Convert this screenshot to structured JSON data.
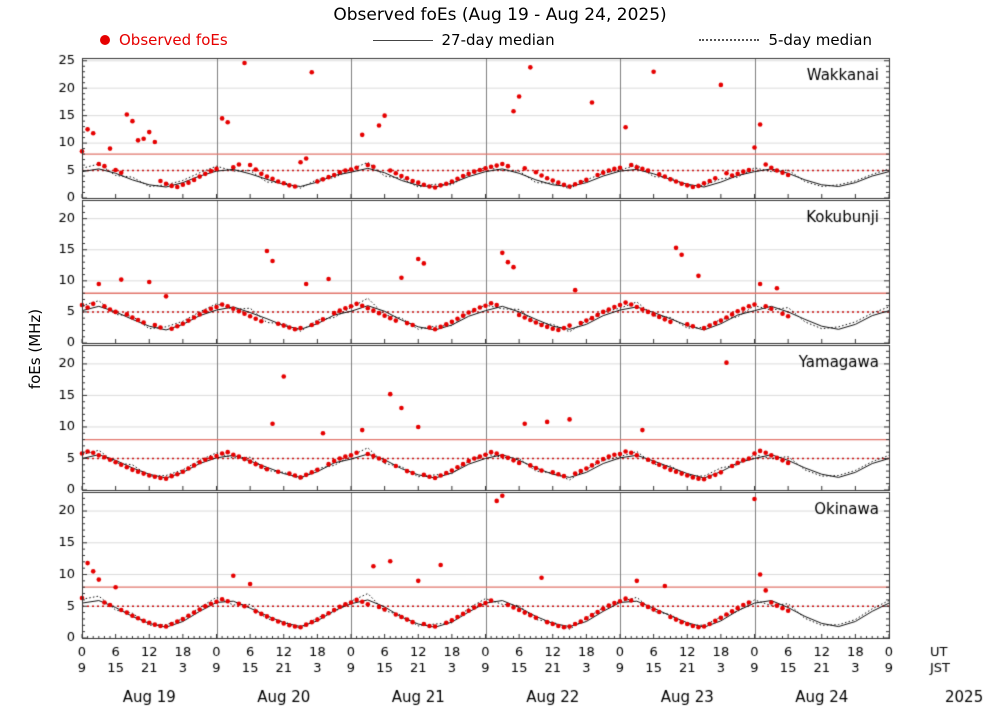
{
  "title": "Observed foEs (Aug 19 - Aug 24, 2025)",
  "ylabel": "foEs (MHz)",
  "legend": {
    "observed": "Observed foEs",
    "median27": "27-day median",
    "median5": "5-day median"
  },
  "colors": {
    "observed": "#e60000",
    "median": "#111111",
    "ref_solid": "#e2756b",
    "ref_dotted": "#cc1111",
    "grid": "#dcdcdc",
    "frame": "#333333",
    "day_line": "#808080"
  },
  "x_axis": {
    "tick_step_hours": 6,
    "ut_row_label": "UT",
    "jst_row_label": "JST",
    "year": "2025",
    "ut_tick_labels": [
      "0",
      "6",
      "12",
      "18",
      "0",
      "6",
      "12",
      "18",
      "0",
      "6",
      "12",
      "18",
      "0",
      "6",
      "12",
      "18",
      "0",
      "6",
      "12",
      "18",
      "0",
      "6",
      "12",
      "18",
      "0"
    ],
    "jst_tick_labels": [
      "9",
      "15",
      "21",
      "3",
      "9",
      "15",
      "21",
      "3",
      "9",
      "15",
      "21",
      "3",
      "9",
      "15",
      "21",
      "3",
      "9",
      "15",
      "21",
      "3",
      "9",
      "15",
      "21",
      "3",
      "9"
    ],
    "day_labels": [
      "Aug 19",
      "Aug 20",
      "Aug 21",
      "Aug 22",
      "Aug 23",
      "Aug 24"
    ]
  },
  "chart_data": {
    "type": "scatter+line",
    "x_unit": "hours since Aug 19 00:00 UT",
    "x_total_hours": 144,
    "observed_step_hours": 1,
    "median_step_hours": 3,
    "reference_lines": {
      "solid_mhz": 8,
      "dotted_mhz": 5
    },
    "panels": [
      {
        "station": "Wakkanai",
        "ymax": 25.5,
        "yticks": [
          0,
          5,
          10,
          15,
          20,
          25
        ],
        "observed": [
          8.5,
          12.5,
          11.8,
          6.2,
          5.8,
          9.0,
          5.1,
          4.6,
          15.2,
          14.0,
          10.5,
          10.8,
          12.0,
          10.2,
          3.1,
          2.6,
          2.2,
          2.0,
          2.4,
          2.8,
          3.3,
          3.9,
          4.4,
          4.9,
          5.3,
          14.5,
          13.8,
          5.6,
          6.1,
          24.6,
          6.0,
          5.2,
          4.4,
          3.9,
          3.5,
          3.0,
          2.7,
          2.3,
          2.1,
          6.5,
          7.2,
          22.9,
          3.0,
          3.4,
          3.8,
          4.2,
          4.7,
          5.0,
          5.2,
          5.5,
          11.5,
          6.0,
          5.7,
          13.2,
          15.0,
          5.0,
          4.5,
          4.0,
          3.6,
          3.1,
          2.8,
          2.4,
          2.1,
          1.9,
          2.3,
          2.6,
          3.0,
          3.5,
          4.0,
          4.4,
          4.8,
          5.1,
          5.4,
          5.7,
          5.9,
          6.2,
          5.8,
          15.8,
          18.5,
          5.4,
          23.8,
          4.7,
          4.1,
          3.6,
          3.2,
          2.8,
          2.4,
          2.1,
          2.5,
          2.9,
          3.3,
          17.4,
          4.2,
          4.6,
          5.0,
          5.3,
          5.5,
          12.9,
          6.0,
          5.6,
          5.3,
          5.0,
          23.0,
          4.3,
          3.9,
          3.4,
          3.0,
          2.6,
          2.3,
          2.0,
          2.2,
          2.7,
          3.1,
          3.6,
          20.6,
          4.5,
          4.1,
          4.4,
          4.8,
          5.1,
          9.2,
          13.4,
          6.1,
          5.5,
          5.0,
          4.6,
          4.2
        ],
        "median27": [
          4.8,
          5.3,
          4.5,
          3.3,
          2.4,
          2.0,
          2.8,
          4.0,
          4.9,
          5.2,
          4.4,
          3.4,
          2.5,
          2.1,
          2.9,
          4.1,
          4.7,
          5.4,
          4.6,
          3.2,
          2.3,
          2.0,
          2.7,
          3.9,
          4.8,
          5.3,
          4.5,
          3.3,
          2.4,
          2.1,
          2.8,
          4.0,
          4.9,
          5.2,
          4.4,
          3.4,
          2.5,
          2.0,
          2.9,
          4.1,
          4.8,
          5.3,
          4.5,
          3.3,
          2.4,
          2.1,
          2.8,
          4.0,
          4.8
        ],
        "median5": [
          5.4,
          6.2,
          4.1,
          3.8,
          2.1,
          2.4,
          3.2,
          4.6,
          5.8,
          4.9,
          5.0,
          2.9,
          2.8,
          1.8,
          3.4,
          3.7,
          5.2,
          6.5,
          4.0,
          3.6,
          2.0,
          2.5,
          2.4,
          4.4,
          5.6,
          5.0,
          4.9,
          2.8,
          2.7,
          1.7,
          3.3,
          4.5,
          5.1,
          6.0,
          3.9,
          3.7,
          2.2,
          2.3,
          3.5,
          3.8,
          5.5,
          4.8,
          5.1,
          3.0,
          2.1,
          2.4,
          3.1,
          4.3,
          5.3
        ]
      },
      {
        "station": "Kokubunji",
        "ymax": 23,
        "yticks": [
          0,
          5,
          10,
          15,
          20
        ],
        "observed": [
          6.1,
          5.7,
          6.3,
          9.5,
          5.9,
          5.4,
          5.0,
          10.2,
          4.6,
          4.1,
          3.7,
          3.3,
          9.8,
          2.9,
          2.5,
          7.5,
          2.3,
          2.7,
          3.1,
          3.6,
          4.1,
          4.6,
          5.1,
          5.5,
          5.8,
          6.2,
          5.9,
          5.5,
          5.1,
          4.7,
          4.3,
          3.9,
          3.5,
          14.8,
          13.2,
          3.1,
          2.8,
          2.5,
          2.2,
          2.4,
          9.5,
          2.9,
          3.3,
          3.8,
          10.3,
          4.8,
          5.2,
          5.6,
          5.9,
          6.3,
          6.0,
          5.6,
          5.2,
          4.8,
          4.4,
          4.0,
          3.6,
          10.5,
          3.2,
          2.9,
          13.5,
          12.8,
          2.5,
          2.2,
          2.6,
          3.0,
          3.4,
          3.9,
          4.4,
          4.9,
          5.3,
          5.7,
          6.0,
          6.4,
          6.1,
          14.5,
          13.0,
          12.2,
          4.5,
          4.1,
          3.7,
          3.3,
          2.9,
          2.6,
          2.3,
          2.1,
          2.4,
          2.8,
          8.5,
          3.2,
          3.6,
          4.0,
          4.5,
          5.0,
          5.4,
          5.8,
          6.1,
          6.5,
          6.2,
          5.8,
          5.4,
          5.0,
          4.6,
          4.2,
          3.8,
          3.4,
          15.3,
          14.2,
          3.0,
          2.7,
          10.8,
          2.4,
          2.8,
          3.2,
          3.6,
          4.1,
          4.6,
          5.1,
          5.5,
          5.9,
          6.2,
          9.5,
          5.9,
          5.5,
          8.8,
          4.7,
          4.3
        ],
        "median27": [
          5.2,
          5.9,
          5.0,
          3.8,
          2.7,
          2.1,
          3.0,
          4.4,
          5.3,
          5.8,
          4.9,
          3.9,
          2.8,
          2.2,
          3.1,
          4.5,
          5.1,
          6.0,
          5.1,
          3.7,
          2.6,
          2.1,
          2.9,
          4.3,
          5.2,
          5.9,
          5.0,
          3.8,
          2.7,
          2.2,
          3.0,
          4.4,
          5.3,
          5.8,
          4.9,
          3.9,
          2.8,
          2.1,
          3.1,
          4.5,
          5.2,
          5.9,
          5.0,
          3.8,
          2.7,
          2.2,
          3.0,
          4.4,
          5.2
        ],
        "median5": [
          6.0,
          6.8,
          4.6,
          4.3,
          2.3,
          2.6,
          3.5,
          5.0,
          6.3,
          5.4,
          5.6,
          3.3,
          3.1,
          1.9,
          3.7,
          4.1,
          5.7,
          7.2,
          4.5,
          4.0,
          2.2,
          2.7,
          2.8,
          4.9,
          6.1,
          5.5,
          5.4,
          3.2,
          3.0,
          1.8,
          3.6,
          5.0,
          5.6,
          6.6,
          4.4,
          4.1,
          2.4,
          2.5,
          3.8,
          4.2,
          6.0,
          5.3,
          5.7,
          3.4,
          2.3,
          2.6,
          3.4,
          4.8,
          5.8
        ]
      },
      {
        "station": "Yamagawa",
        "ymax": 23,
        "yticks": [
          0,
          5,
          10,
          15,
          20
        ],
        "observed": [
          5.8,
          6.1,
          5.9,
          5.5,
          5.2,
          4.8,
          4.4,
          4.0,
          3.6,
          3.2,
          2.9,
          2.6,
          2.3,
          2.1,
          1.9,
          1.8,
          2.2,
          2.5,
          2.9,
          3.4,
          3.9,
          4.4,
          4.8,
          5.1,
          5.4,
          5.8,
          6.0,
          5.6,
          5.3,
          4.9,
          4.5,
          4.1,
          3.7,
          3.3,
          10.5,
          2.9,
          18.0,
          2.6,
          2.3,
          2.0,
          2.4,
          2.8,
          3.2,
          9.0,
          4.1,
          4.6,
          5.0,
          5.3,
          5.5,
          5.9,
          9.5,
          5.7,
          5.4,
          5.0,
          4.6,
          15.2,
          3.8,
          13.0,
          3.0,
          2.7,
          10.0,
          2.4,
          2.1,
          1.9,
          2.3,
          2.7,
          3.1,
          3.6,
          4.1,
          4.6,
          5.0,
          5.3,
          5.6,
          6.0,
          5.8,
          5.4,
          5.1,
          4.7,
          4.3,
          10.5,
          3.9,
          3.5,
          3.1,
          10.8,
          2.8,
          2.5,
          2.2,
          11.2,
          2.6,
          3.0,
          3.4,
          3.9,
          4.4,
          4.9,
          5.3,
          5.6,
          5.7,
          6.1,
          5.9,
          5.5,
          9.5,
          4.8,
          4.4,
          4.0,
          3.6,
          3.2,
          2.9,
          2.6,
          2.3,
          2.0,
          1.8,
          1.7,
          2.1,
          2.4,
          2.8,
          20.2,
          3.8,
          4.3,
          4.7,
          5.0,
          5.8,
          6.2,
          5.9,
          5.5,
          5.1,
          4.7,
          4.3
        ],
        "median27": [
          5.0,
          5.6,
          4.7,
          3.5,
          2.5,
          1.9,
          2.8,
          4.2,
          5.1,
          5.5,
          4.6,
          3.6,
          2.6,
          2.0,
          2.9,
          4.3,
          4.9,
          5.7,
          4.8,
          3.4,
          2.4,
          1.9,
          2.7,
          4.1,
          5.0,
          5.6,
          4.7,
          3.5,
          2.5,
          2.0,
          2.8,
          4.2,
          5.1,
          5.5,
          4.6,
          3.6,
          2.6,
          1.9,
          2.9,
          4.3,
          5.0,
          5.6,
          4.7,
          3.5,
          2.5,
          2.0,
          2.8,
          4.2,
          5.0
        ],
        "median5": [
          5.6,
          6.3,
          4.3,
          4.0,
          2.2,
          2.3,
          3.2,
          4.7,
          5.9,
          5.1,
          5.2,
          3.1,
          2.8,
          1.7,
          3.4,
          3.9,
          5.4,
          6.7,
          4.2,
          3.7,
          2.1,
          2.4,
          2.6,
          4.6,
          5.7,
          5.2,
          5.0,
          3.0,
          2.7,
          1.6,
          3.3,
          4.7,
          5.3,
          6.1,
          4.1,
          3.8,
          2.3,
          2.2,
          3.5,
          4.0,
          5.6,
          5.0,
          5.3,
          3.2,
          2.2,
          2.3,
          3.1,
          4.5,
          5.5
        ]
      },
      {
        "station": "Okinawa",
        "ymax": 23,
        "yticks": [
          0,
          5,
          10,
          15,
          20
        ],
        "observed": [
          6.3,
          11.8,
          10.5,
          9.2,
          5.6,
          5.2,
          8.0,
          4.4,
          4.0,
          3.5,
          3.1,
          2.7,
          2.4,
          2.1,
          1.9,
          1.8,
          2.2,
          2.6,
          3.0,
          3.5,
          4.0,
          4.5,
          5.0,
          5.4,
          5.7,
          6.1,
          5.8,
          9.8,
          5.4,
          5.0,
          8.5,
          4.2,
          3.8,
          3.4,
          3.0,
          2.6,
          2.3,
          2.0,
          1.8,
          1.7,
          2.1,
          2.5,
          2.9,
          3.4,
          3.9,
          4.4,
          4.9,
          5.3,
          5.6,
          6.0,
          5.7,
          5.3,
          11.3,
          4.9,
          4.5,
          12.1,
          3.7,
          3.3,
          2.9,
          2.5,
          9.0,
          2.2,
          1.9,
          1.8,
          11.5,
          2.4,
          2.8,
          3.3,
          3.8,
          4.3,
          4.8,
          5.2,
          5.5,
          5.9,
          21.6,
          22.4,
          5.2,
          4.8,
          4.4,
          4.0,
          3.6,
          3.2,
          9.5,
          2.5,
          2.2,
          1.9,
          1.7,
          1.8,
          2.2,
          2.6,
          3.1,
          3.6,
          4.1,
          4.6,
          5.1,
          5.5,
          5.8,
          6.2,
          5.9,
          9.0,
          5.3,
          4.9,
          4.5,
          4.1,
          8.2,
          3.3,
          2.9,
          2.5,
          2.2,
          1.9,
          1.7,
          1.8,
          2.2,
          2.7,
          3.2,
          3.7,
          4.2,
          4.7,
          5.2,
          5.6,
          21.9,
          10.0,
          7.5,
          5.6,
          5.1,
          4.7,
          4.3
        ],
        "median27": [
          5.5,
          5.9,
          4.8,
          3.4,
          2.3,
          1.7,
          2.6,
          4.2,
          5.6,
          5.8,
          4.7,
          3.5,
          2.4,
          1.8,
          2.7,
          4.3,
          5.4,
          6.0,
          4.9,
          3.3,
          2.2,
          1.7,
          2.5,
          4.1,
          5.5,
          5.9,
          4.8,
          3.4,
          2.3,
          1.8,
          2.6,
          4.2,
          5.6,
          5.8,
          4.7,
          3.5,
          2.4,
          1.7,
          2.7,
          4.3,
          5.5,
          5.9,
          4.8,
          3.4,
          2.3,
          1.8,
          2.6,
          4.2,
          5.5
        ],
        "median5": [
          6.1,
          6.6,
          4.4,
          3.9,
          2.0,
          2.1,
          3.0,
          4.8,
          6.4,
          5.2,
          5.3,
          3.0,
          2.6,
          1.5,
          3.2,
          4.1,
          5.8,
          7.0,
          4.3,
          3.6,
          1.9,
          2.2,
          2.4,
          4.7,
          6.2,
          5.3,
          5.1,
          2.9,
          2.5,
          1.4,
          3.1,
          4.8,
          5.7,
          6.4,
          4.2,
          3.7,
          2.1,
          2.0,
          3.3,
          4.2,
          6.0,
          5.1,
          5.4,
          3.1,
          2.0,
          2.1,
          2.9,
          4.6,
          5.9
        ]
      }
    ]
  }
}
